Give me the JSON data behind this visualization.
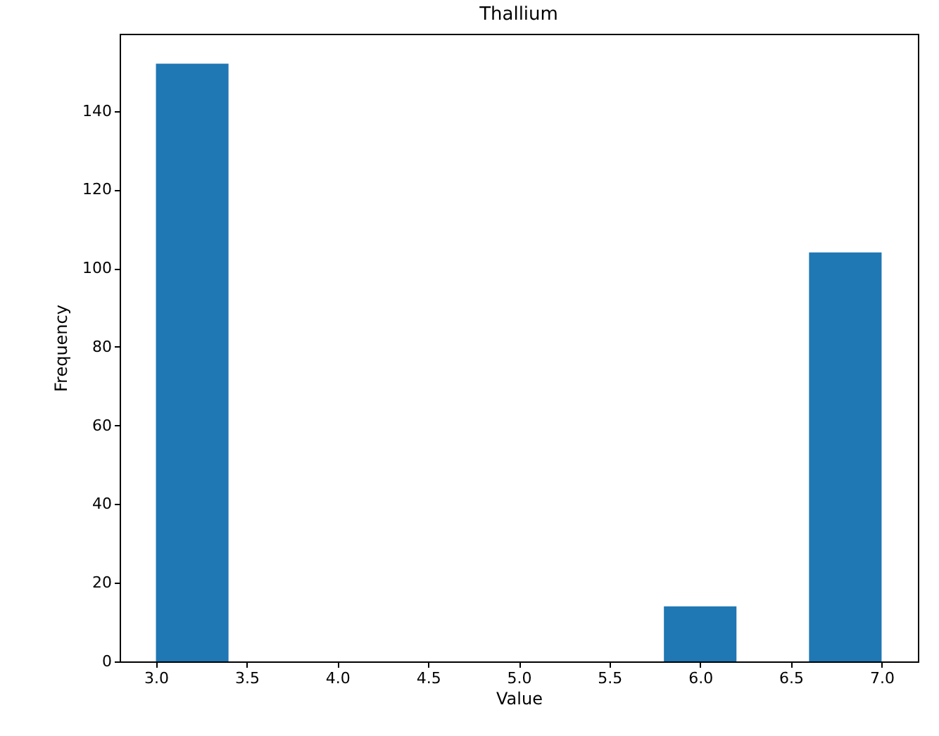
{
  "chart_data": {
    "type": "histogram",
    "title": "Thallium",
    "xlabel": "Value",
    "ylabel": "Frequency",
    "bins": [
      3.0,
      3.4,
      3.8,
      4.2,
      4.6,
      5.0,
      5.4,
      5.8,
      6.2,
      6.6,
      7.0
    ],
    "values": [
      152,
      0,
      0,
      0,
      0,
      0,
      0,
      14,
      0,
      104
    ],
    "color": "#1f77b4",
    "xlim": [
      2.8,
      7.2
    ],
    "xticks": [
      {
        "value": 3,
        "label": "3.0"
      },
      {
        "value": 3.5,
        "label": "3.5"
      },
      {
        "value": 4,
        "label": "4.0"
      },
      {
        "value": 4.5,
        "label": "4.5"
      },
      {
        "value": 5,
        "label": "5.0"
      },
      {
        "value": 5.5,
        "label": "5.5"
      },
      {
        "value": 6,
        "label": "6.0"
      },
      {
        "value": 6.5,
        "label": "6.5"
      },
      {
        "value": 7,
        "label": "7.0"
      }
    ],
    "ylim": [
      0,
      159.6
    ],
    "yticks": [
      0,
      20,
      40,
      60,
      80,
      100,
      120,
      140
    ],
    "grid": false
  }
}
